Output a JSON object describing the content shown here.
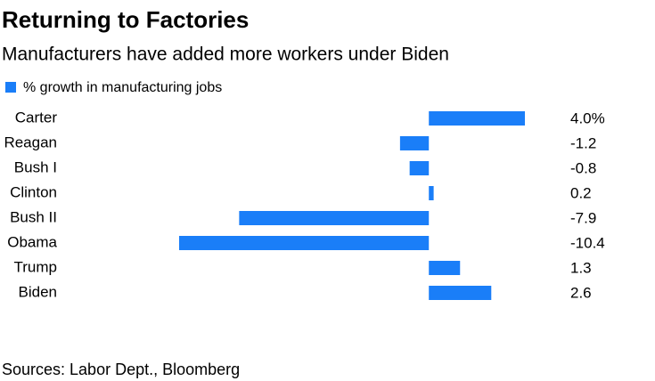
{
  "chart_data": {
    "type": "hbar",
    "title": "Returning to Factories",
    "subtitle": "Manufacturers have added more workers under Biden",
    "source": "Sources: Labor Dept., Bloomberg",
    "categories": [
      "Carter",
      "Reagan",
      "Bush I",
      "Clinton",
      "Bush II",
      "Obama",
      "Trump",
      "Biden"
    ],
    "series": [
      {
        "name": "% growth in manufacturing jobs",
        "color": "#1a7ef8",
        "values": [
          4.0,
          -1.2,
          -0.8,
          0.2,
          -7.9,
          -10.4,
          1.3,
          2.6
        ],
        "value_labels": [
          "4.0%",
          "-1.2",
          "-0.8",
          "0.2",
          "-7.9",
          "-10.4",
          "1.3",
          "2.6"
        ]
      }
    ]
  }
}
